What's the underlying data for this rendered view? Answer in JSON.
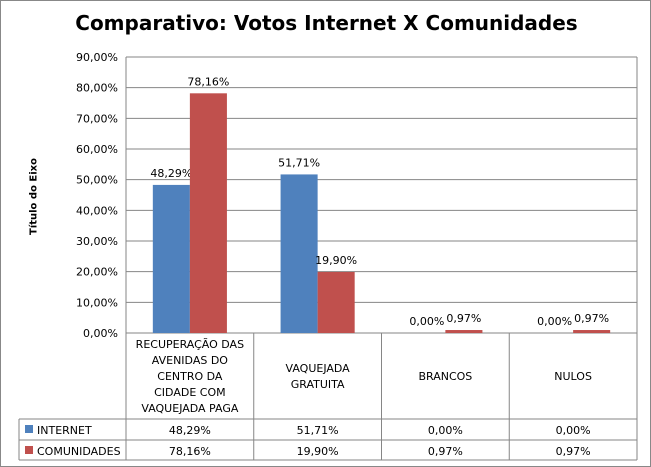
{
  "chart_data": {
    "type": "bar",
    "title": "Comparativo: Votos Internet X Comunidades",
    "ylabel": "Título do Eixo",
    "xlabel": "",
    "ylim": [
      0,
      90
    ],
    "yticks": [
      "0,00%",
      "10,00%",
      "20,00%",
      "30,00%",
      "40,00%",
      "50,00%",
      "60,00%",
      "70,00%",
      "80,00%",
      "90,00%"
    ],
    "grid": true,
    "legend": "data-table",
    "categories": [
      [
        "RECUPERAÇÃO DAS",
        "AVENIDAS DO",
        "CENTRO DA",
        "CIDADE COM",
        "VAQUEJADA PAGA"
      ],
      [
        "VAQUEJADA",
        "GRATUITA"
      ],
      [
        "BRANCOS"
      ],
      [
        "NULOS"
      ]
    ],
    "series": [
      {
        "name": "INTERNET",
        "color": "#4f81bd",
        "values": [
          48.29,
          51.71,
          0,
          0
        ],
        "labels": [
          "48,29%",
          "51,71%",
          "0,00%",
          "0,00%"
        ]
      },
      {
        "name": "COMUNIDADES",
        "color": "#c0504d",
        "values": [
          78.16,
          19.9,
          0.97,
          0.97
        ],
        "labels": [
          "78,16%",
          "19,90%",
          "0,97%",
          "0,97%"
        ]
      }
    ]
  }
}
